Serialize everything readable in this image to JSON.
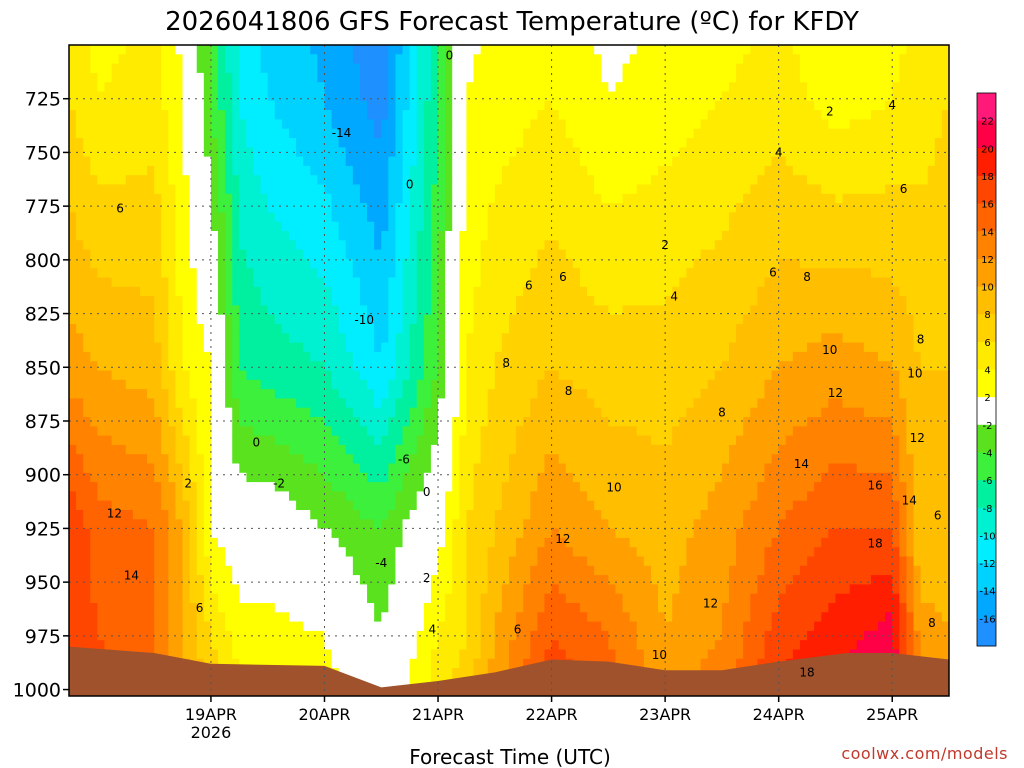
{
  "chart_data": {
    "type": "heatmap",
    "title": "2026041806 GFS Forecast Temperature (ºC) for KFDY",
    "xlabel": "Forecast Time (UTC)",
    "ylabel": "",
    "credit": "coolwx.com/models",
    "x_ticks": [
      {
        "label": "19APR",
        "sub": "2026",
        "day": 1.0
      },
      {
        "label": "20APR",
        "sub": "",
        "day": 2.0
      },
      {
        "label": "21APR",
        "sub": "",
        "day": 3.0
      },
      {
        "label": "22APR",
        "sub": "",
        "day": 4.0
      },
      {
        "label": "23APR",
        "sub": "",
        "day": 5.0
      },
      {
        "label": "24APR",
        "sub": "",
        "day": 6.0
      },
      {
        "label": "25APR",
        "sub": "",
        "day": 7.0
      }
    ],
    "xlim_days": [
      -0.25,
      7.5
    ],
    "y_ticks": [
      725,
      750,
      775,
      800,
      825,
      850,
      875,
      900,
      925,
      950,
      975,
      1000
    ],
    "ylim_hpa": [
      700,
      1003
    ],
    "colorbar": {
      "levels": [
        -18,
        -16,
        -14,
        -12,
        -10,
        -8,
        -6,
        -4,
        -2,
        2,
        4,
        6,
        8,
        10,
        12,
        14,
        16,
        18,
        20,
        22,
        24
      ],
      "labels": [
        "-16",
        "-14",
        "-12",
        "-10",
        "-8",
        "-6",
        "-4",
        "-2",
        "2",
        "4",
        "6",
        "8",
        "10",
        "12",
        "14",
        "16",
        "18",
        "20",
        "22"
      ],
      "colors": [
        "#1e90ff",
        "#00a8ff",
        "#00d2ff",
        "#00eeff",
        "#00f0d2",
        "#00f0a0",
        "#3cf03c",
        "#5ae21e",
        "#ffffff",
        "#ffff00",
        "#ffeb00",
        "#ffd200",
        "#ffbe00",
        "#ffa000",
        "#ff8200",
        "#ff6400",
        "#ff4600",
        "#ff1e00",
        "#ff0046",
        "#ff1978"
      ]
    },
    "ground_color": "#a0522d",
    "surface_hpa": [
      {
        "day": -0.25,
        "p": 980
      },
      {
        "day": 0.5,
        "p": 983
      },
      {
        "day": 1.0,
        "p": 988
      },
      {
        "day": 2.0,
        "p": 989
      },
      {
        "day": 2.5,
        "p": 999
      },
      {
        "day": 3.0,
        "p": 996
      },
      {
        "day": 3.5,
        "p": 992
      },
      {
        "day": 4.0,
        "p": 986
      },
      {
        "day": 4.5,
        "p": 987
      },
      {
        "day": 5.0,
        "p": 991
      },
      {
        "day": 5.5,
        "p": 991
      },
      {
        "day": 6.0,
        "p": 987
      },
      {
        "day": 6.6,
        "p": 983
      },
      {
        "day": 7.0,
        "p": 983
      },
      {
        "day": 7.5,
        "p": 986
      }
    ],
    "temperature_columns": [
      {
        "day": -0.25,
        "t725": 6,
        "t850": 11,
        "t925": 18,
        "t975": 18
      },
      {
        "day": 0.0,
        "t725": 4,
        "t850": 10,
        "t925": 15,
        "t975": 16
      },
      {
        "day": 0.5,
        "t725": 5,
        "t850": 9,
        "t925": 14,
        "t975": 14
      },
      {
        "day": 0.75,
        "t725": 2,
        "t850": 4,
        "t925": 10,
        "t975": 10
      },
      {
        "day": 1.0,
        "t725": -4,
        "t850": 2,
        "t925": 2,
        "t975": 6
      },
      {
        "day": 1.25,
        "t725": -10,
        "t850": -6,
        "t925": 0,
        "t975": 3
      },
      {
        "day": 1.5,
        "t725": -12,
        "t850": -7,
        "t925": 0,
        "t975": 3
      },
      {
        "day": 2.0,
        "t725": -14,
        "t850": -8,
        "t925": -2,
        "t975": 2
      },
      {
        "day": 2.5,
        "t725": -17,
        "t850": -12,
        "t925": -4,
        "t975": -2
      },
      {
        "day": 3.0,
        "t725": -6,
        "t850": -4,
        "t925": 1,
        "t975": 4
      },
      {
        "day": 3.25,
        "t725": 2,
        "t850": 4,
        "t925": 6,
        "t975": 6
      },
      {
        "day": 3.5,
        "t725": 3,
        "t850": 6,
        "t925": 8,
        "t975": 10
      },
      {
        "day": 4.0,
        "t725": 4,
        "t850": 8,
        "t925": 12,
        "t975": 16
      },
      {
        "day": 4.5,
        "t725": 2,
        "t850": 7,
        "t925": 10,
        "t975": 14
      },
      {
        "day": 5.0,
        "t725": 3,
        "t850": 7,
        "t925": 9,
        "t975": 10
      },
      {
        "day": 5.5,
        "t725": 4,
        "t850": 8,
        "t925": 11,
        "t975": 12
      },
      {
        "day": 6.0,
        "t725": 5,
        "t850": 10,
        "t925": 14,
        "t975": 17
      },
      {
        "day": 6.5,
        "t725": 3,
        "t850": 11,
        "t925": 16,
        "t975": 19
      },
      {
        "day": 7.0,
        "t725": 4,
        "t850": 10,
        "t925": 16,
        "t975": 21
      },
      {
        "day": 7.25,
        "t725": 5,
        "t850": 8,
        "t925": 8,
        "t975": 11
      },
      {
        "day": 7.5,
        "t725": 6,
        "t850": 8,
        "t925": 9,
        "t975": 10
      }
    ],
    "contour_labels": [
      {
        "text": "0",
        "day": 3.1,
        "p": 705
      },
      {
        "text": "-14",
        "day": 2.15,
        "p": 741
      },
      {
        "text": "0",
        "day": 2.75,
        "p": 765
      },
      {
        "text": "2",
        "day": 6.45,
        "p": 731
      },
      {
        "text": "4",
        "day": 7.0,
        "p": 728
      },
      {
        "text": "4",
        "day": 6.0,
        "p": 750
      },
      {
        "text": "6",
        "day": 7.1,
        "p": 767
      },
      {
        "text": "6",
        "day": 0.2,
        "p": 776
      },
      {
        "text": "2",
        "day": 5.0,
        "p": 793
      },
      {
        "text": "4",
        "day": 5.08,
        "p": 817
      },
      {
        "text": "6",
        "day": 3.8,
        "p": 812
      },
      {
        "text": "6",
        "day": 4.1,
        "p": 808
      },
      {
        "text": "6",
        "day": 5.95,
        "p": 806
      },
      {
        "text": "8",
        "day": 6.25,
        "p": 808
      },
      {
        "text": "-10",
        "day": 2.35,
        "p": 828
      },
      {
        "text": "8",
        "day": 3.6,
        "p": 848
      },
      {
        "text": "8",
        "day": 4.15,
        "p": 861
      },
      {
        "text": "10",
        "day": 6.45,
        "p": 842
      },
      {
        "text": "8",
        "day": 7.25,
        "p": 837
      },
      {
        "text": "10",
        "day": 7.2,
        "p": 853
      },
      {
        "text": "8",
        "day": 5.5,
        "p": 871
      },
      {
        "text": "12",
        "day": 6.5,
        "p": 862
      },
      {
        "text": "0",
        "day": 1.4,
        "p": 885
      },
      {
        "text": "-6",
        "day": 2.7,
        "p": 893
      },
      {
        "text": "12",
        "day": 7.22,
        "p": 883
      },
      {
        "text": "14",
        "day": 6.2,
        "p": 895
      },
      {
        "text": "-2",
        "day": 1.6,
        "p": 904
      },
      {
        "text": "2",
        "day": 0.8,
        "p": 904
      },
      {
        "text": "10",
        "day": 4.55,
        "p": 906
      },
      {
        "text": "0",
        "day": 2.9,
        "p": 908
      },
      {
        "text": "16",
        "day": 6.85,
        "p": 905
      },
      {
        "text": "14",
        "day": 7.15,
        "p": 912
      },
      {
        "text": "12",
        "day": 0.15,
        "p": 918
      },
      {
        "text": "6",
        "day": 7.4,
        "p": 919
      },
      {
        "text": "12",
        "day": 4.1,
        "p": 930
      },
      {
        "text": "18",
        "day": 6.85,
        "p": 932
      },
      {
        "text": "-4",
        "day": 2.5,
        "p": 941
      },
      {
        "text": "2",
        "day": 2.9,
        "p": 948
      },
      {
        "text": "14",
        "day": 0.3,
        "p": 947
      },
      {
        "text": "6",
        "day": 0.9,
        "p": 962
      },
      {
        "text": "4",
        "day": 2.95,
        "p": 972
      },
      {
        "text": "6",
        "day": 3.7,
        "p": 972
      },
      {
        "text": "12",
        "day": 5.4,
        "p": 960
      },
      {
        "text": "8",
        "day": 7.35,
        "p": 969
      },
      {
        "text": "10",
        "day": 4.95,
        "p": 984
      },
      {
        "text": "18",
        "day": 6.25,
        "p": 992
      }
    ]
  }
}
